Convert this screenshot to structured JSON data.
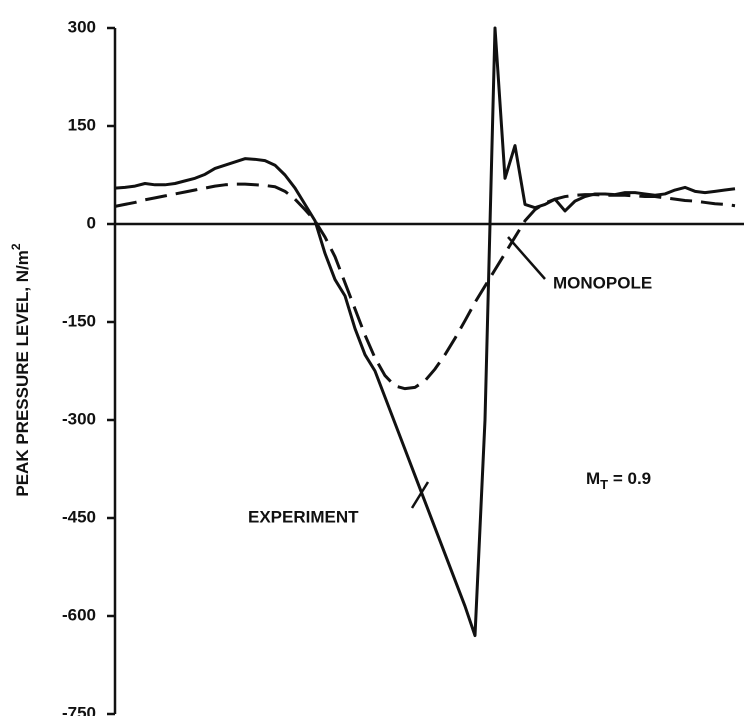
{
  "chart_data": {
    "type": "line",
    "y_label": {
      "main": "PEAK PRESSURE LEVEL, N/m",
      "sup": "2"
    },
    "categories": [
      null,
      null,
      null,
      null,
      null,
      null,
      null,
      null,
      null,
      null,
      null,
      null,
      null,
      null,
      null,
      null,
      null,
      null,
      null,
      null,
      null,
      null,
      null,
      null,
      null,
      null,
      null,
      null,
      null,
      null,
      null,
      null,
      null,
      null,
      null,
      null,
      null,
      null,
      null,
      null,
      null,
      null,
      null,
      null,
      null,
      null,
      null,
      null,
      null,
      null,
      null,
      null,
      null,
      null,
      null,
      null,
      null,
      null,
      null,
      null,
      null,
      null,
      null
    ],
    "series": [
      {
        "name": "EXPERIMENT",
        "color": "#111111",
        "dash": false,
        "values": [
          55,
          56,
          58,
          62,
          60,
          60,
          62,
          66,
          70,
          76,
          85,
          90,
          95,
          100,
          99,
          97,
          90,
          75,
          55,
          30,
          5,
          -45,
          -85,
          -110,
          -160,
          -200,
          -225,
          -265,
          -305,
          -345,
          -385,
          -425,
          -465,
          -505,
          -545,
          -585,
          -630,
          -300,
          300,
          70,
          120,
          30,
          25,
          30,
          38,
          20,
          35,
          42,
          46,
          46,
          45,
          48,
          48,
          46,
          44,
          46,
          52,
          56,
          50,
          48,
          50,
          52,
          54
        ]
      },
      {
        "name": "MONOPOLE",
        "color": "#111111",
        "dash": true,
        "values": [
          27,
          30,
          33,
          37,
          40,
          43,
          46,
          49,
          52,
          55,
          58,
          60,
          61,
          61,
          60,
          59,
          57,
          50,
          38,
          22,
          5,
          -20,
          -50,
          -90,
          -130,
          -170,
          -205,
          -232,
          -248,
          -252,
          -250,
          -240,
          -222,
          -200,
          -175,
          -148,
          -120,
          -95,
          -70,
          -45,
          -20,
          5,
          22,
          32,
          38,
          42,
          44,
          45,
          45,
          44,
          44,
          44,
          43,
          42,
          42,
          40,
          38,
          36,
          35,
          33,
          31,
          30,
          28
        ]
      }
    ],
    "mach_label": {
      "main": "M",
      "sub": "T",
      "tail": " = 0.9"
    },
    "ylim": [
      -750,
      300
    ],
    "yticks": [
      300,
      150,
      0,
      -150,
      -300,
      -450,
      -600,
      -750
    ],
    "zero_line": true
  }
}
